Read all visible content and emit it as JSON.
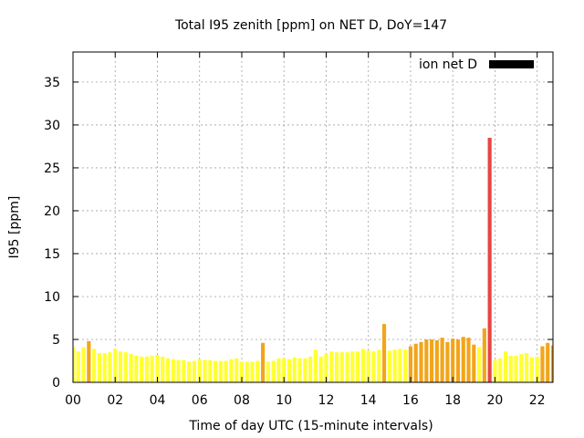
{
  "chart_data": {
    "type": "bar",
    "title": "Total I95 zenith [ppm] on NET D, DoY=147",
    "xlabel": "Time of day UTC (15-minute intervals)",
    "ylabel": "I95 [ppm]",
    "legend": {
      "label": "ion net D",
      "color": "#000000",
      "placement": "top-right"
    },
    "xlim": [
      0,
      22.75
    ],
    "ylim": [
      0,
      38.5
    ],
    "x_ticks": [
      {
        "value": 0,
        "label": "00"
      },
      {
        "value": 2,
        "label": "02"
      },
      {
        "value": 4,
        "label": "04"
      },
      {
        "value": 6,
        "label": "06"
      },
      {
        "value": 8,
        "label": "08"
      },
      {
        "value": 10,
        "label": "10"
      },
      {
        "value": 12,
        "label": "12"
      },
      {
        "value": 14,
        "label": "14"
      },
      {
        "value": 16,
        "label": "16"
      },
      {
        "value": 18,
        "label": "18"
      },
      {
        "value": 20,
        "label": "20"
      },
      {
        "value": 22,
        "label": "22"
      }
    ],
    "y_ticks": [
      {
        "value": 0,
        "label": "0"
      },
      {
        "value": 5,
        "label": "5"
      },
      {
        "value": 10,
        "label": "10"
      },
      {
        "value": 15,
        "label": "15"
      },
      {
        "value": 20,
        "label": "20"
      },
      {
        "value": 25,
        "label": "25"
      },
      {
        "value": 30,
        "label": "30"
      },
      {
        "value": 35,
        "label": "35"
      }
    ],
    "grid": true,
    "bar_colors": {
      "low": "#ffff33",
      "mid": "#f2a51a",
      "high": "#e84444"
    },
    "x": [
      0,
      0.25,
      0.5,
      0.75,
      1,
      1.25,
      1.5,
      1.75,
      2,
      2.25,
      2.5,
      2.75,
      3,
      3.25,
      3.5,
      3.75,
      4,
      4.25,
      4.5,
      4.75,
      5,
      5.25,
      5.5,
      5.75,
      6,
      6.25,
      6.5,
      6.75,
      7,
      7.25,
      7.5,
      7.75,
      8,
      8.25,
      8.5,
      8.75,
      9,
      9.25,
      9.5,
      9.75,
      10,
      10.25,
      10.5,
      10.75,
      11,
      11.25,
      11.5,
      11.75,
      12,
      12.25,
      12.5,
      12.75,
      13,
      13.25,
      13.5,
      13.75,
      14,
      14.25,
      14.5,
      14.75,
      15,
      15.25,
      15.5,
      15.75,
      16,
      16.25,
      16.5,
      16.75,
      17,
      17.25,
      17.5,
      17.75,
      18,
      18.25,
      18.5,
      18.75,
      19,
      19.25,
      19.5,
      19.75,
      20,
      20.25,
      20.5,
      20.75,
      21,
      21.25,
      21.5,
      21.75,
      22,
      22.25,
      22.5,
      22.75
    ],
    "values": [
      4.1,
      3.6,
      4.1,
      4.8,
      3.9,
      3.4,
      3.4,
      3.5,
      3.9,
      3.6,
      3.5,
      3.3,
      3.1,
      3.0,
      3.0,
      3.1,
      3.2,
      3.0,
      2.8,
      2.7,
      2.6,
      2.6,
      2.4,
      2.5,
      2.7,
      2.6,
      2.6,
      2.5,
      2.5,
      2.5,
      2.7,
      2.8,
      2.4,
      2.4,
      2.4,
      2.5,
      4.6,
      2.4,
      2.5,
      2.8,
      2.8,
      2.7,
      2.9,
      2.8,
      2.8,
      3.0,
      3.8,
      3.0,
      3.3,
      3.6,
      3.5,
      3.5,
      3.5,
      3.6,
      3.6,
      3.9,
      3.7,
      3.6,
      3.8,
      6.8,
      3.7,
      3.8,
      3.9,
      3.8,
      4.2,
      4.5,
      4.7,
      5.0,
      5.0,
      4.9,
      5.2,
      4.7,
      5.1,
      5.0,
      5.3,
      5.2,
      4.4,
      4.1,
      6.3,
      28.5,
      2.6,
      2.8,
      3.6,
      3.1,
      3.1,
      3.3,
      3.4,
      2.9,
      3.0,
      4.2,
      4.6,
      4.3
    ]
  }
}
